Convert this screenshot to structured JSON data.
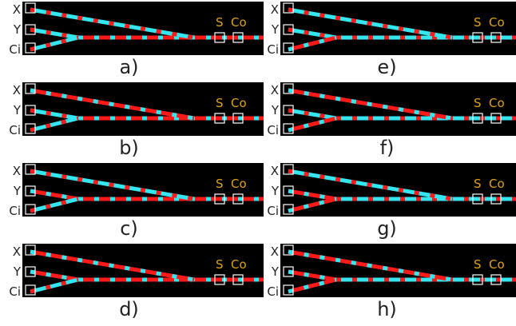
{
  "inputs": [
    "X",
    "Y",
    "Ci"
  ],
  "outputs": [
    "S",
    "Co"
  ],
  "colors": {
    "high": "#ff1a1a",
    "low": "#33e6ef",
    "output_label": "#e0a21c",
    "background": "#000000"
  },
  "panels": [
    {
      "caption": "a)",
      "x": "low",
      "y": "low",
      "ci": "low"
    },
    {
      "caption": "b)",
      "x": "high",
      "y": "low",
      "ci": "low"
    },
    {
      "caption": "c)",
      "x": "low",
      "y": "high",
      "ci": "low"
    },
    {
      "caption": "d)",
      "x": "high",
      "y": "high",
      "ci": "low"
    },
    {
      "caption": "e)",
      "x": "low",
      "y": "low",
      "ci": "high"
    },
    {
      "caption": "f)",
      "x": "high",
      "y": "low",
      "ci": "high"
    },
    {
      "caption": "g)",
      "x": "low",
      "y": "high",
      "ci": "high"
    },
    {
      "caption": "h)",
      "x": "high",
      "y": "high",
      "ci": "high"
    }
  ]
}
